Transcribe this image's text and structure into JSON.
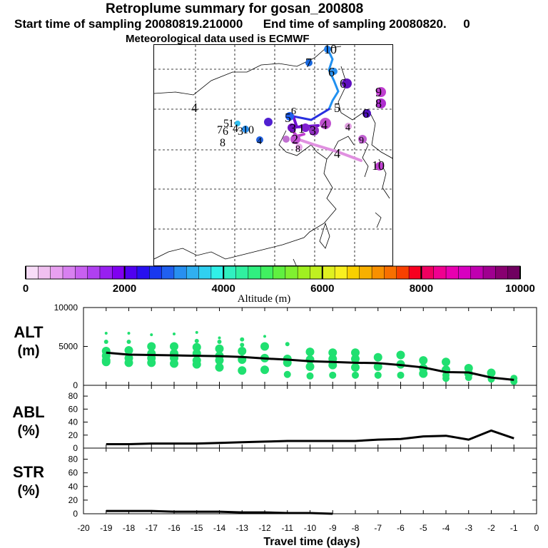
{
  "header": {
    "title": "Retroplume summary for gosan_200808",
    "line2_start": "Start time of sampling 20080819.210000",
    "line2_end": "End time of sampling 20080820.",
    "line2_tail": "0",
    "line3": "Meteorological data used is ECMWF"
  },
  "map": {
    "labels": [
      "10",
      "7",
      "6",
      "6",
      "5",
      "9",
      "8",
      "6",
      "4",
      "5",
      "6",
      "3",
      "1",
      "2",
      "3",
      "4",
      "8",
      "4",
      "4",
      "9",
      "10",
      "4",
      "1",
      "5",
      "7",
      "6",
      "3",
      "10",
      "4",
      "8"
    ]
  },
  "colorbar": {
    "title": "Altitude (m)",
    "ticks": [
      "0",
      "2000",
      "4000",
      "6000",
      "8000",
      "10000"
    ],
    "colors": [
      "#f8dcf8",
      "#f0c0f0",
      "#e8a0f0",
      "#d880f0",
      "#c860f0",
      "#b040f0",
      "#9820f0",
      "#8000f0",
      "#5000f0",
      "#2810f0",
      "#1838f0",
      "#2060f0",
      "#2890f0",
      "#30b0f0",
      "#30d0f0",
      "#30f0e8",
      "#30f0c0",
      "#30f0a0",
      "#30f080",
      "#40f060",
      "#60f040",
      "#80f030",
      "#a0f020",
      "#c0f020",
      "#e0f020",
      "#f8f020",
      "#f8d000",
      "#f8b000",
      "#f89000",
      "#f87000",
      "#f84000",
      "#f80020",
      "#f00060",
      "#f00090",
      "#e800b0",
      "#d800c0",
      "#c000b0",
      "#a00090",
      "#880070",
      "#700060"
    ]
  },
  "chart_data": [
    {
      "type": "line",
      "panel": "ALT",
      "ylabel_line1": "ALT",
      "ylabel_line2": "(m)",
      "ylim": [
        0,
        10000
      ],
      "yticks": [
        "0",
        "5000",
        "10000"
      ],
      "x": [
        -19,
        -18,
        -17,
        -16,
        -15,
        -14,
        -13,
        -12,
        -11,
        -10,
        -9,
        -8,
        -7,
        -6,
        -5,
        -4,
        -3,
        -2,
        -1
      ],
      "values": [
        4200,
        3950,
        3900,
        3850,
        3800,
        3750,
        3650,
        3450,
        3300,
        3100,
        3000,
        2900,
        2850,
        2600,
        2300,
        1700,
        1650,
        1000,
        700
      ],
      "scatter": [
        [
          -19,
          6700
        ],
        [
          -19,
          5600
        ],
        [
          -19,
          4400
        ],
        [
          -19,
          3800
        ],
        [
          -19,
          3200
        ],
        [
          -19,
          3000
        ],
        [
          -18,
          6700
        ],
        [
          -18,
          5600
        ],
        [
          -18,
          4500
        ],
        [
          -18,
          3500
        ],
        [
          -18,
          2900
        ],
        [
          -17,
          6500
        ],
        [
          -17,
          5000
        ],
        [
          -17,
          4100
        ],
        [
          -17,
          3500
        ],
        [
          -17,
          2900
        ],
        [
          -16,
          6600
        ],
        [
          -16,
          5000
        ],
        [
          -16,
          4100
        ],
        [
          -16,
          3500
        ],
        [
          -16,
          2800
        ],
        [
          -15,
          6800
        ],
        [
          -15,
          5700
        ],
        [
          -15,
          4900
        ],
        [
          -15,
          4100
        ],
        [
          -15,
          3200
        ],
        [
          -15,
          2700
        ],
        [
          -14,
          6100
        ],
        [
          -14,
          5600
        ],
        [
          -14,
          4700
        ],
        [
          -14,
          3800
        ],
        [
          -14,
          3200
        ],
        [
          -14,
          2300
        ],
        [
          -13,
          5900
        ],
        [
          -13,
          5200
        ],
        [
          -13,
          4400
        ],
        [
          -13,
          3300
        ],
        [
          -13,
          1900
        ],
        [
          -12,
          6300
        ],
        [
          -12,
          5000
        ],
        [
          -12,
          3500
        ],
        [
          -12,
          2000
        ],
        [
          -11,
          5300
        ],
        [
          -11,
          3400
        ],
        [
          -11,
          2900
        ],
        [
          -11,
          1400
        ],
        [
          -10,
          4300
        ],
        [
          -10,
          3300
        ],
        [
          -10,
          2400
        ],
        [
          -10,
          1200
        ],
        [
          -9,
          4200
        ],
        [
          -9,
          3400
        ],
        [
          -9,
          2600
        ],
        [
          -9,
          1300
        ],
        [
          -8,
          4200
        ],
        [
          -8,
          3400
        ],
        [
          -8,
          2300
        ],
        [
          -8,
          1300
        ],
        [
          -7,
          3600
        ],
        [
          -7,
          2400
        ],
        [
          -7,
          1300
        ],
        [
          -6,
          3900
        ],
        [
          -6,
          2700
        ],
        [
          -6,
          1300
        ],
        [
          -5,
          3200
        ],
        [
          -5,
          2200
        ],
        [
          -5,
          1500
        ],
        [
          -4,
          3000
        ],
        [
          -4,
          2000
        ],
        [
          -4,
          1300
        ],
        [
          -4,
          900
        ],
        [
          -3,
          2200
        ],
        [
          -3,
          1500
        ],
        [
          -3,
          1000
        ],
        [
          -2,
          1600
        ],
        [
          -2,
          800
        ],
        [
          -1,
          900
        ],
        [
          -1,
          500
        ]
      ]
    },
    {
      "type": "line",
      "panel": "ABL",
      "ylabel_line1": "ABL",
      "ylabel_line2": "(%)",
      "ylim": [
        0,
        90
      ],
      "yticks": [
        "0",
        "20",
        "40",
        "60",
        "80"
      ],
      "x": [
        -19,
        -18,
        -17,
        -16,
        -15,
        -14,
        -13,
        -12,
        -11,
        -10,
        -9,
        -8,
        -7,
        -6,
        -5,
        -4,
        -3,
        -2,
        -1
      ],
      "values": [
        6,
        6,
        7,
        7,
        7,
        8,
        9,
        10,
        11,
        11,
        11,
        11,
        13,
        14,
        18,
        19,
        13,
        27,
        15
      ]
    },
    {
      "type": "line",
      "panel": "STR",
      "ylabel_line1": "STR",
      "ylabel_line2": "(%)",
      "ylim": [
        0,
        90
      ],
      "yticks": [
        "0",
        "20",
        "40",
        "60",
        "80"
      ],
      "x": [
        -19,
        -18,
        -17,
        -16,
        -15,
        -14,
        -13,
        -12,
        -11,
        -10,
        -9
      ],
      "values": [
        4,
        4,
        4,
        3,
        3,
        3,
        2,
        2,
        1,
        1,
        0
      ],
      "xlabel": "Travel time (days)",
      "xticks": [
        "-20",
        "-19",
        "-18",
        "-17",
        "-16",
        "-15",
        "-14",
        "-13",
        "-12",
        "-11",
        "-10",
        "-9",
        "-8",
        "-7",
        "-6",
        "-5",
        "-4",
        "-3",
        "-2",
        "-1",
        "0"
      ]
    }
  ]
}
